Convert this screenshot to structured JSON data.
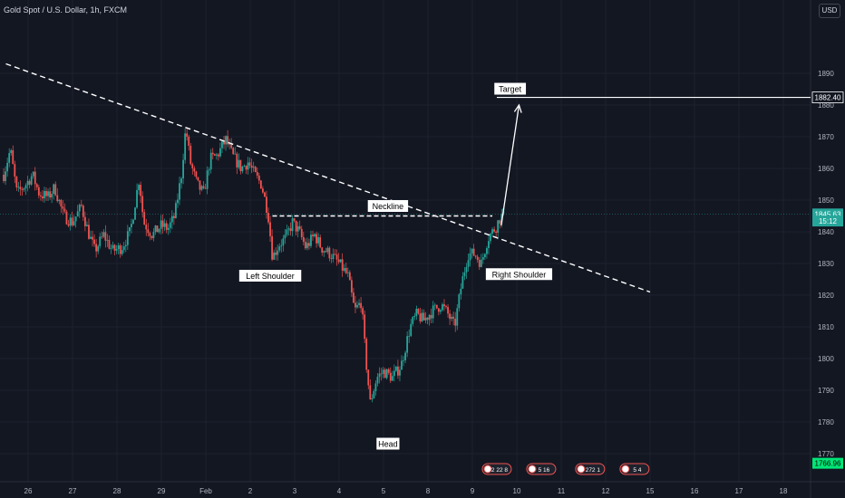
{
  "header": {
    "symbol_title": "Gold Spot / U.S. Dollar, 1h, FXCM",
    "currency_button": "USD"
  },
  "colors": {
    "background": "#131722",
    "up": "#26a69a",
    "down": "#ef5350",
    "grid": "#1e222d",
    "axis_text": "#b2b5be",
    "current_price_bg": "#26a69a",
    "label_bg": "#ffffff",
    "label_text": "#000000"
  },
  "chart_data": {
    "type": "candlestick",
    "ylim": [
      1765,
      1895
    ],
    "y_ticks": [
      1770,
      1780,
      1790,
      1800,
      1810,
      1820,
      1830,
      1840,
      1850,
      1860,
      1870,
      1880,
      1890
    ],
    "x_ticks": [
      {
        "label": "26",
        "day": 0
      },
      {
        "label": "27",
        "day": 1
      },
      {
        "label": "28",
        "day": 2
      },
      {
        "label": "29",
        "day": 3
      },
      {
        "label": "Feb",
        "day": 4
      },
      {
        "label": "2",
        "day": 5
      },
      {
        "label": "3",
        "day": 6
      },
      {
        "label": "4",
        "day": 7
      },
      {
        "label": "5",
        "day": 8
      },
      {
        "label": "8",
        "day": 9
      },
      {
        "label": "9",
        "day": 10
      },
      {
        "label": "10",
        "day": 11
      },
      {
        "label": "11",
        "day": 12
      },
      {
        "label": "12",
        "day": 13
      },
      {
        "label": "15",
        "day": 14
      },
      {
        "label": "16",
        "day": 15
      },
      {
        "label": "17",
        "day": 16
      },
      {
        "label": "18",
        "day": 17
      }
    ],
    "price_path": [
      [
        -0.55,
        1858
      ],
      [
        -0.4,
        1866
      ],
      [
        -0.25,
        1852
      ],
      [
        -0.05,
        1855
      ],
      [
        0.1,
        1858
      ],
      [
        0.25,
        1852
      ],
      [
        0.45,
        1851
      ],
      [
        0.6,
        1854
      ],
      [
        0.8,
        1845
      ],
      [
        1.0,
        1843
      ],
      [
        1.2,
        1848
      ],
      [
        1.35,
        1840
      ],
      [
        1.5,
        1834
      ],
      [
        1.7,
        1839
      ],
      [
        1.9,
        1834
      ],
      [
        2.1,
        1835
      ],
      [
        2.3,
        1840
      ],
      [
        2.5,
        1857
      ],
      [
        2.6,
        1843
      ],
      [
        2.8,
        1839
      ],
      [
        3.0,
        1842
      ],
      [
        3.15,
        1841
      ],
      [
        3.3,
        1845
      ],
      [
        3.45,
        1858
      ],
      [
        3.55,
        1873
      ],
      [
        3.65,
        1862
      ],
      [
        3.8,
        1855
      ],
      [
        3.95,
        1852
      ],
      [
        4.1,
        1863
      ],
      [
        4.25,
        1864
      ],
      [
        4.45,
        1869
      ],
      [
        4.6,
        1864
      ],
      [
        4.8,
        1860
      ],
      [
        4.95,
        1862
      ],
      [
        5.1,
        1858
      ],
      [
        5.25,
        1855
      ],
      [
        5.4,
        1846
      ],
      [
        5.5,
        1832
      ],
      [
        5.65,
        1836
      ],
      [
        5.8,
        1838
      ],
      [
        5.95,
        1843
      ],
      [
        6.1,
        1840
      ],
      [
        6.25,
        1835
      ],
      [
        6.45,
        1839
      ],
      [
        6.6,
        1835
      ],
      [
        6.8,
        1833
      ],
      [
        7.0,
        1830
      ],
      [
        7.2,
        1826
      ],
      [
        7.35,
        1815
      ],
      [
        7.5,
        1818
      ],
      [
        7.6,
        1800
      ],
      [
        7.7,
        1786
      ],
      [
        7.85,
        1794
      ],
      [
        8.0,
        1796
      ],
      [
        8.2,
        1794
      ],
      [
        8.4,
        1798
      ],
      [
        8.6,
        1810
      ],
      [
        8.75,
        1814
      ],
      [
        8.9,
        1812
      ],
      [
        9.1,
        1815
      ],
      [
        9.3,
        1817
      ],
      [
        9.45,
        1814
      ],
      [
        9.6,
        1810
      ],
      [
        9.75,
        1823
      ],
      [
        9.9,
        1833
      ],
      [
        10.05,
        1833
      ],
      [
        10.2,
        1830
      ],
      [
        10.35,
        1838
      ],
      [
        10.5,
        1841
      ],
      [
        10.55,
        1842
      ],
      [
        10.6,
        1844
      ],
      [
        10.7,
        1845.63
      ]
    ],
    "neckline": {
      "price": 1845,
      "from_day": 5.5,
      "to_day": 10.45
    },
    "trendline": {
      "from_day": -0.5,
      "from_price": 1893,
      "to_day": 14.0,
      "to_price": 1821
    },
    "target_arrow": {
      "from_day": 10.65,
      "from_price": 1842,
      "to_day": 11.05,
      "to_price": 1880
    },
    "target_line": {
      "price": 1882.4,
      "from_day": 10.55,
      "to_day": 17.95
    },
    "annotations": [
      {
        "text": "Target",
        "day": 10.85,
        "price": 1885
      },
      {
        "text": "Neckline",
        "day": 8.1,
        "price": 1848
      },
      {
        "text": "Left Shoulder",
        "day": 5.45,
        "price": 1826
      },
      {
        "text": "Right Shoulder",
        "day": 11.05,
        "price": 1826.5
      },
      {
        "text": "Head",
        "day": 8.1,
        "price": 1773
      }
    ],
    "price_labels": [
      {
        "text": "1882.40",
        "price": 1882.4,
        "style": "white"
      },
      {
        "text": "1845.63",
        "price": 1845.63,
        "style": "green"
      },
      {
        "text": "15:12",
        "price": 1843.4,
        "style": "green"
      },
      {
        "text": "1766.96",
        "price": 1766.96,
        "style": "lime"
      }
    ],
    "events": [
      {
        "day": 10.55,
        "text": "2 22 8"
      },
      {
        "day": 11.55,
        "text": "5 16"
      },
      {
        "day": 12.65,
        "text": "272 1"
      },
      {
        "day": 13.65,
        "text": "5 4"
      }
    ],
    "grid": true
  }
}
